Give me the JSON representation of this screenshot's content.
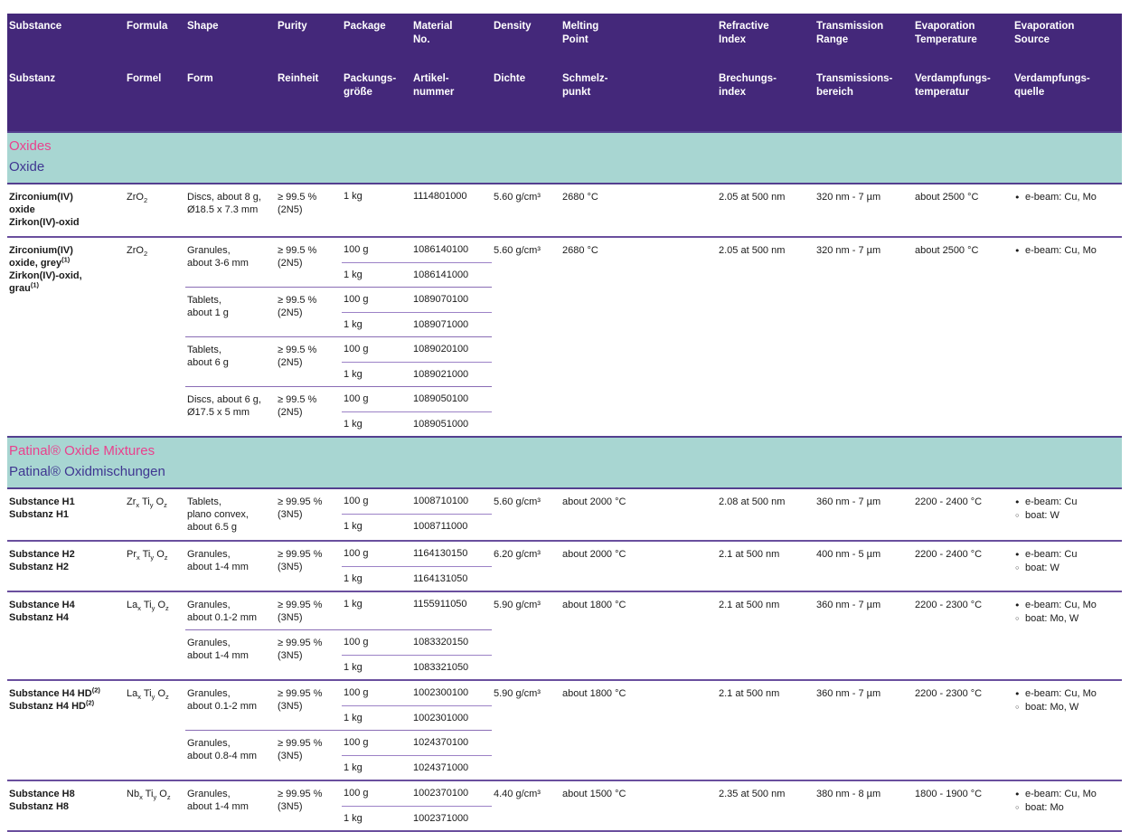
{
  "header": {
    "columns": [
      {
        "en": "Substance",
        "de": "Substanz"
      },
      {
        "en": "Formula",
        "de": "Formel"
      },
      {
        "en": "Shape",
        "de": "Form"
      },
      {
        "en": "Purity",
        "de": "Reinheit"
      },
      {
        "en": "Package",
        "de": "Packungs-\ngröße"
      },
      {
        "en": "Material\nNo.",
        "de": "Artikel-\nnummer"
      },
      {
        "en": "Density",
        "de": "Dichte"
      },
      {
        "en": "Melting\nPoint",
        "de": "Schmelz-\npunkt"
      },
      {
        "en": "Refractive\nIndex",
        "de": "Brechungs-\nindex"
      },
      {
        "en": "Transmission\nRange",
        "de": "Transmissions-\nbereich"
      },
      {
        "en": "Evaporation\nTemperature",
        "de": "Verdampfungs-\ntemperatur"
      },
      {
        "en": "Evaporation\nSource",
        "de": "Verdampfungs-\nquelle"
      }
    ]
  },
  "theme": {
    "header_bg": "#44287a",
    "band_bg": "#a8d6d2",
    "title_en_color": "#e9418d",
    "title_de_color": "#3f3691",
    "rule_color": "#6a4f9e"
  },
  "sections": [
    {
      "title_en": "Oxides",
      "title_de": "Oxide",
      "rows": [
        {
          "name_en": "Zirconium(IV)\noxide",
          "name_de": "Zirkon(IV)-oxid",
          "formula": [
            {
              "t": "ZrO",
              "s": "2"
            }
          ],
          "groups": [
            {
              "shape": "Discs, about 8 g,\nØ18.5 x 7.3 mm",
              "purity": "≥ 99.5 %\n(2N5)",
              "packages": [
                {
                  "size": "1 kg",
                  "material_no": "1114801000"
                }
              ]
            }
          ],
          "density": "5.60 g/cm³",
          "melting_point": "2680 °C",
          "refractive_index": "2.05 at 500 nm",
          "transmission_range": "320 nm - 7 µm",
          "evaporation_temperature": "about 2500 °C",
          "sources": [
            {
              "icon": "•",
              "text": "e-beam: Cu, Mo"
            }
          ]
        },
        {
          "name_en": "Zirconium(IV)\noxide, grey",
          "sup_en": "(1)",
          "name_de": "Zirkon(IV)-oxid,\ngrau",
          "sup_de": "(1)",
          "formula": [
            {
              "t": "ZrO",
              "s": "2"
            }
          ],
          "groups": [
            {
              "shape": "Granules,\nabout 3-6 mm",
              "purity": "≥ 99.5 %\n(2N5)",
              "packages": [
                {
                  "size": "100 g",
                  "material_no": "1086140100"
                },
                {
                  "size": "1 kg",
                  "material_no": "1086141000"
                }
              ]
            },
            {
              "shape": "Tablets,\nabout 1 g",
              "purity": "≥ 99.5 %\n(2N5)",
              "packages": [
                {
                  "size": "100 g",
                  "material_no": "1089070100"
                },
                {
                  "size": "1 kg",
                  "material_no": "1089071000"
                }
              ]
            },
            {
              "shape": "Tablets,\nabout 6 g",
              "purity": "≥ 99.5 %\n(2N5)",
              "packages": [
                {
                  "size": "100 g",
                  "material_no": "1089020100"
                },
                {
                  "size": "1 kg",
                  "material_no": "1089021000"
                }
              ]
            },
            {
              "shape": "Discs, about 6 g,\nØ17.5 x 5 mm",
              "purity": "≥ 99.5 %\n(2N5)",
              "packages": [
                {
                  "size": "100 g",
                  "material_no": "1089050100"
                },
                {
                  "size": "1 kg",
                  "material_no": "1089051000"
                }
              ]
            }
          ],
          "density": "5.60 g/cm³",
          "melting_point": "2680 °C",
          "refractive_index": "2.05 at 500 nm",
          "transmission_range": "320 nm - 7 µm",
          "evaporation_temperature": "about 2500 °C",
          "sources": [
            {
              "icon": "•",
              "text": "e-beam: Cu, Mo"
            }
          ]
        }
      ]
    },
    {
      "title_en": "Patinal® Oxide Mixtures",
      "title_de": "Patinal® Oxidmischungen",
      "rows": [
        {
          "name_en": "Substance H1",
          "name_de": "Substanz H1",
          "formula": [
            {
              "t": "Zr",
              "s": "x"
            },
            {
              "t": "Ti",
              "s": "y"
            },
            {
              "t": "O",
              "s": "z"
            }
          ],
          "groups": [
            {
              "shape": "Tablets,\nplano convex,\nabout 6.5 g",
              "purity": "≥ 99.95 %\n(3N5)",
              "packages": [
                {
                  "size": "100 g",
                  "material_no": "1008710100"
                },
                {
                  "size": "1 kg",
                  "material_no": "1008711000"
                }
              ]
            }
          ],
          "density": "5.60 g/cm³",
          "melting_point": "about 2000 °C",
          "refractive_index": "2.08 at 500 nm",
          "transmission_range": "360 nm - 7 µm",
          "evaporation_temperature": "2200 - 2400 °C",
          "sources": [
            {
              "icon": "•",
              "text": "e-beam: Cu"
            },
            {
              "icon": "◦",
              "text": "boat: W"
            }
          ]
        },
        {
          "name_en": "Substance H2",
          "name_de": "Substanz H2",
          "formula": [
            {
              "t": "Pr",
              "s": "x"
            },
            {
              "t": "Ti",
              "s": "y"
            },
            {
              "t": "O",
              "s": "z"
            }
          ],
          "groups": [
            {
              "shape": "Granules,\nabout 1-4 mm",
              "purity": "≥ 99.95 %\n(3N5)",
              "packages": [
                {
                  "size": "100 g",
                  "material_no": "1164130150"
                },
                {
                  "size": "1 kg",
                  "material_no": "1164131050"
                }
              ]
            }
          ],
          "density": "6.20 g/cm³",
          "melting_point": "about 2000 °C",
          "refractive_index": "2.1 at 500 nm",
          "transmission_range": "400 nm - 5 µm",
          "evaporation_temperature": "2200 - 2400 °C",
          "sources": [
            {
              "icon": "•",
              "text": "e-beam: Cu"
            },
            {
              "icon": "◦",
              "text": "boat: W"
            }
          ]
        },
        {
          "name_en": "Substance H4",
          "name_de": "Substanz H4",
          "formula": [
            {
              "t": "La",
              "s": "x"
            },
            {
              "t": "Ti",
              "s": "y"
            },
            {
              "t": "O",
              "s": "z"
            }
          ],
          "groups": [
            {
              "shape": "Granules,\nabout 0.1-2 mm",
              "purity": "≥ 99.95 %\n(3N5)",
              "packages": [
                {
                  "size": "1 kg",
                  "material_no": "1155911050"
                }
              ]
            },
            {
              "shape": "Granules,\nabout 1-4 mm",
              "purity": "≥ 99.95 %\n(3N5)",
              "packages": [
                {
                  "size": "100 g",
                  "material_no": "1083320150"
                },
                {
                  "size": "1 kg",
                  "material_no": "1083321050"
                }
              ]
            }
          ],
          "density": "5.90 g/cm³",
          "melting_point": "about 1800 °C",
          "refractive_index": "2.1 at 500 nm",
          "transmission_range": "360 nm - 7 µm",
          "evaporation_temperature": "2200 - 2300 °C",
          "sources": [
            {
              "icon": "•",
              "text": "e-beam: Cu, Mo"
            },
            {
              "icon": "◦",
              "text": "boat: Mo, W"
            }
          ]
        },
        {
          "name_en": "Substance H4 HD",
          "sup_en": "(2)",
          "name_de": "Substanz H4 HD",
          "sup_de": "(2)",
          "formula": [
            {
              "t": "La",
              "s": "x"
            },
            {
              "t": "Ti",
              "s": "y"
            },
            {
              "t": "O",
              "s": "z"
            }
          ],
          "groups": [
            {
              "shape": "Granules,\nabout 0.1-2 mm",
              "purity": "≥ 99.95 %\n(3N5)",
              "packages": [
                {
                  "size": "100 g",
                  "material_no": "1002300100"
                },
                {
                  "size": "1 kg",
                  "material_no": "1002301000"
                }
              ]
            },
            {
              "shape": "Granules,\nabout 0.8-4 mm",
              "purity": "≥ 99.95 %\n(3N5)",
              "packages": [
                {
                  "size": "100 g",
                  "material_no": "1024370100"
                },
                {
                  "size": "1 kg",
                  "material_no": "1024371000"
                }
              ]
            }
          ],
          "density": "5.90 g/cm³",
          "melting_point": "about 1800 °C",
          "refractive_index": "2.1 at 500 nm",
          "transmission_range": "360 nm - 7 µm",
          "evaporation_temperature": "2200 - 2300 °C",
          "sources": [
            {
              "icon": "•",
              "text": "e-beam: Cu, Mo"
            },
            {
              "icon": "◦",
              "text": "boat: Mo, W"
            }
          ]
        },
        {
          "name_en": "Substance H8",
          "name_de": "Substanz H8",
          "formula": [
            {
              "t": "Nb",
              "s": "x"
            },
            {
              "t": "Ti",
              "s": "y"
            },
            {
              "t": "O",
              "s": "z"
            }
          ],
          "groups": [
            {
              "shape": "Granules,\nabout 1-4 mm",
              "purity": "≥ 99.95 %\n(3N5)",
              "packages": [
                {
                  "size": "100 g",
                  "material_no": "1002370100"
                },
                {
                  "size": "1 kg",
                  "material_no": "1002371000"
                }
              ]
            }
          ],
          "density": "4.40 g/cm³",
          "melting_point": "about 1500 °C",
          "refractive_index": "2.35 at 500 nm",
          "transmission_range": "380 nm - 8 µm",
          "evaporation_temperature": "1800 - 1900 °C",
          "sources": [
            {
              "icon": "•",
              "text": "e-beam: Cu, Mo"
            },
            {
              "icon": "◦",
              "text": "boat: Mo"
            }
          ]
        }
      ]
    }
  ]
}
